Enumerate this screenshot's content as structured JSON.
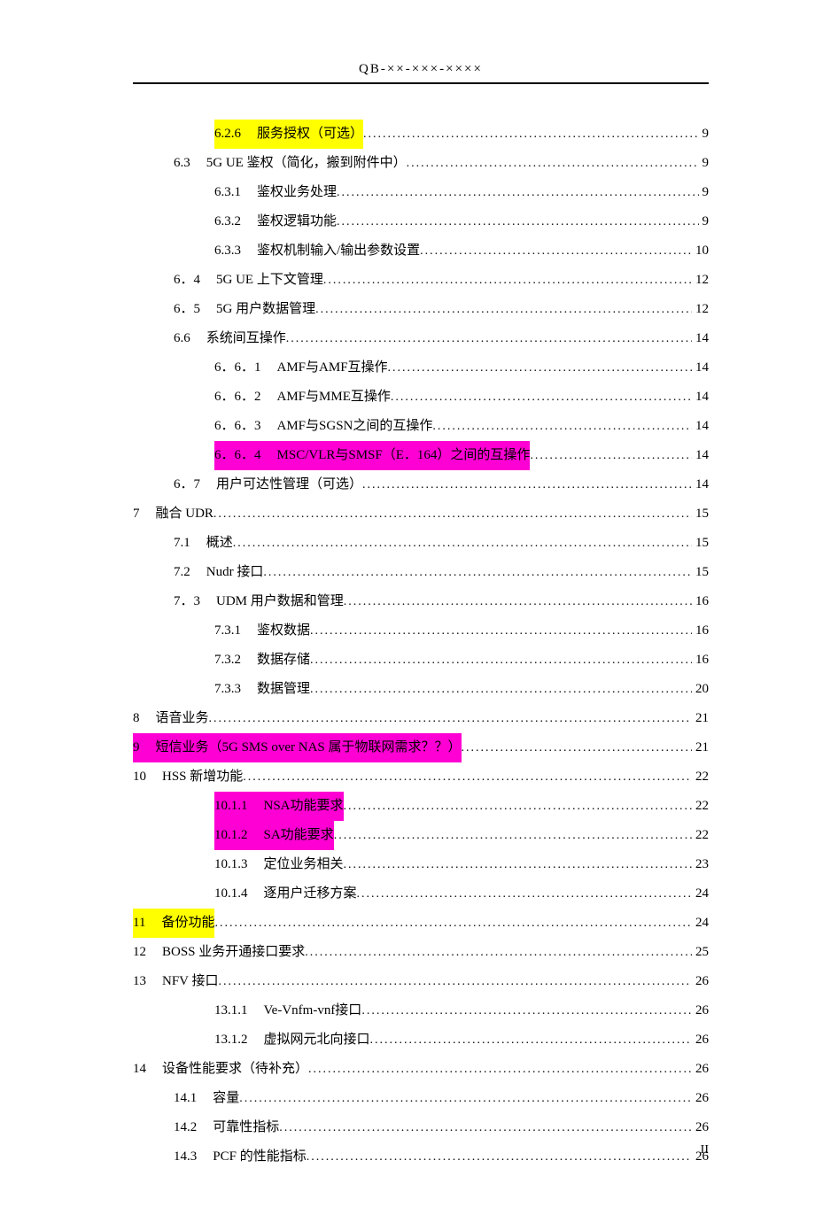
{
  "header": {
    "text": "QB-××-×××-××××"
  },
  "footer": {
    "text": "II"
  },
  "colors": {
    "yellow": "#ffff00",
    "magenta": "#ff00d4",
    "text": "#000000",
    "background": "#ffffff"
  },
  "toc": [
    {
      "indent": 2,
      "num": "6.2.6",
      "title": "服务授权（可选）",
      "page": "9",
      "hl_num": "yellow",
      "hl_title": "yellow"
    },
    {
      "indent": 1,
      "num": "6.3",
      "title": "5G UE 鉴权（简化，搬到附件中）",
      "page": "9"
    },
    {
      "indent": 2,
      "num": "6.3.1",
      "title": "鉴权业务处理",
      "page": "9"
    },
    {
      "indent": 2,
      "num": "6.3.2",
      "title": "鉴权逻辑功能",
      "page": "9"
    },
    {
      "indent": 2,
      "num": "6.3.3",
      "title": "鉴权机制输入/输出参数设置",
      "page": "10"
    },
    {
      "indent": 1,
      "num": "6．4",
      "title": "5G UE 上下文管理",
      "page": "12"
    },
    {
      "indent": 1,
      "num": "6．5",
      "title": "5G 用户数据管理",
      "page": "12"
    },
    {
      "indent": 1,
      "num": "6.6",
      "title": "系统间互操作",
      "page": "14"
    },
    {
      "indent": 2,
      "num": "6．6．1",
      "title": "AMF与AMF互操作",
      "page": "14"
    },
    {
      "indent": 2,
      "num": "6．6．2",
      "title": "AMF与MME互操作",
      "page": "14"
    },
    {
      "indent": 2,
      "num": "6．6．3",
      "title": "AMF与SGSN之间的互操作",
      "page": "14"
    },
    {
      "indent": 2,
      "num": "6．6．4",
      "title": "MSC/VLR与SMSF（E．164）之间的互操作",
      "page": "14",
      "hl_num": "magenta",
      "hl_title": "magenta"
    },
    {
      "indent": 1,
      "num": "6．7",
      "title": "用户可达性管理（可选）",
      "page": "14"
    },
    {
      "indent": 0,
      "num": "7",
      "title": "融合 UDR",
      "page": "15"
    },
    {
      "indent": 1,
      "num": "7.1",
      "title": "概述",
      "page": "15"
    },
    {
      "indent": 1,
      "num": "7.2",
      "title": "Nudr 接口",
      "page": "15"
    },
    {
      "indent": 1,
      "num": "7．3",
      "title": "UDM 用户数据和管理",
      "page": "16"
    },
    {
      "indent": 2,
      "num": "7.3.1",
      "title": "鉴权数据",
      "page": "16"
    },
    {
      "indent": 2,
      "num": "7.3.2",
      "title": "数据存储",
      "page": "16"
    },
    {
      "indent": 2,
      "num": "7.3.3",
      "title": "数据管理",
      "page": "20"
    },
    {
      "indent": 0,
      "num": "8",
      "title": "语音业务",
      "page": "21"
    },
    {
      "indent": 0,
      "num": "9",
      "title": "短信业务（5G SMS over NAS 属于物联网需求？？）",
      "page": "21",
      "hl_num": "magenta",
      "hl_title": "magenta"
    },
    {
      "indent": 0,
      "num": "10",
      "title": "HSS 新增功能",
      "page": "22"
    },
    {
      "indent": 2,
      "num": "10.1.1",
      "title": "NSA功能要求",
      "page": "22",
      "hl_num": "magenta",
      "hl_title": "magenta"
    },
    {
      "indent": 2,
      "num": "10.1.2",
      "title": "SA功能要求",
      "page": "22",
      "hl_num": "magenta",
      "hl_title": "magenta"
    },
    {
      "indent": 2,
      "num": "10.1.3",
      "title": "定位业务相关",
      "page": "23"
    },
    {
      "indent": 2,
      "num": "10.1.4",
      "title": "逐用户迁移方案",
      "page": "24"
    },
    {
      "indent": 0,
      "num": "11",
      "title": "备份功能",
      "page": "24",
      "hl_num": "yellow",
      "hl_title": "yellow"
    },
    {
      "indent": 0,
      "num": "12",
      "title": "BOSS 业务开通接口要求",
      "page": "25"
    },
    {
      "indent": 0,
      "num": "13",
      "title": "NFV 接口",
      "page": "26"
    },
    {
      "indent": 2,
      "num": "13.1.1",
      "title": "Ve-Vnfm-vnf接口",
      "page": "26"
    },
    {
      "indent": 2,
      "num": "13.1.2",
      "title": "虚拟网元北向接口",
      "page": "26"
    },
    {
      "indent": 0,
      "num": "14",
      "title": "设备性能要求（待补充）",
      "page": "26"
    },
    {
      "indent": 1,
      "num": "14.1",
      "title": "容量",
      "page": "26"
    },
    {
      "indent": 1,
      "num": "14.2",
      "title": "可靠性指标",
      "page": "26"
    },
    {
      "indent": 1,
      "num": "14.3",
      "title": "PCF 的性能指标",
      "page": "26"
    }
  ]
}
